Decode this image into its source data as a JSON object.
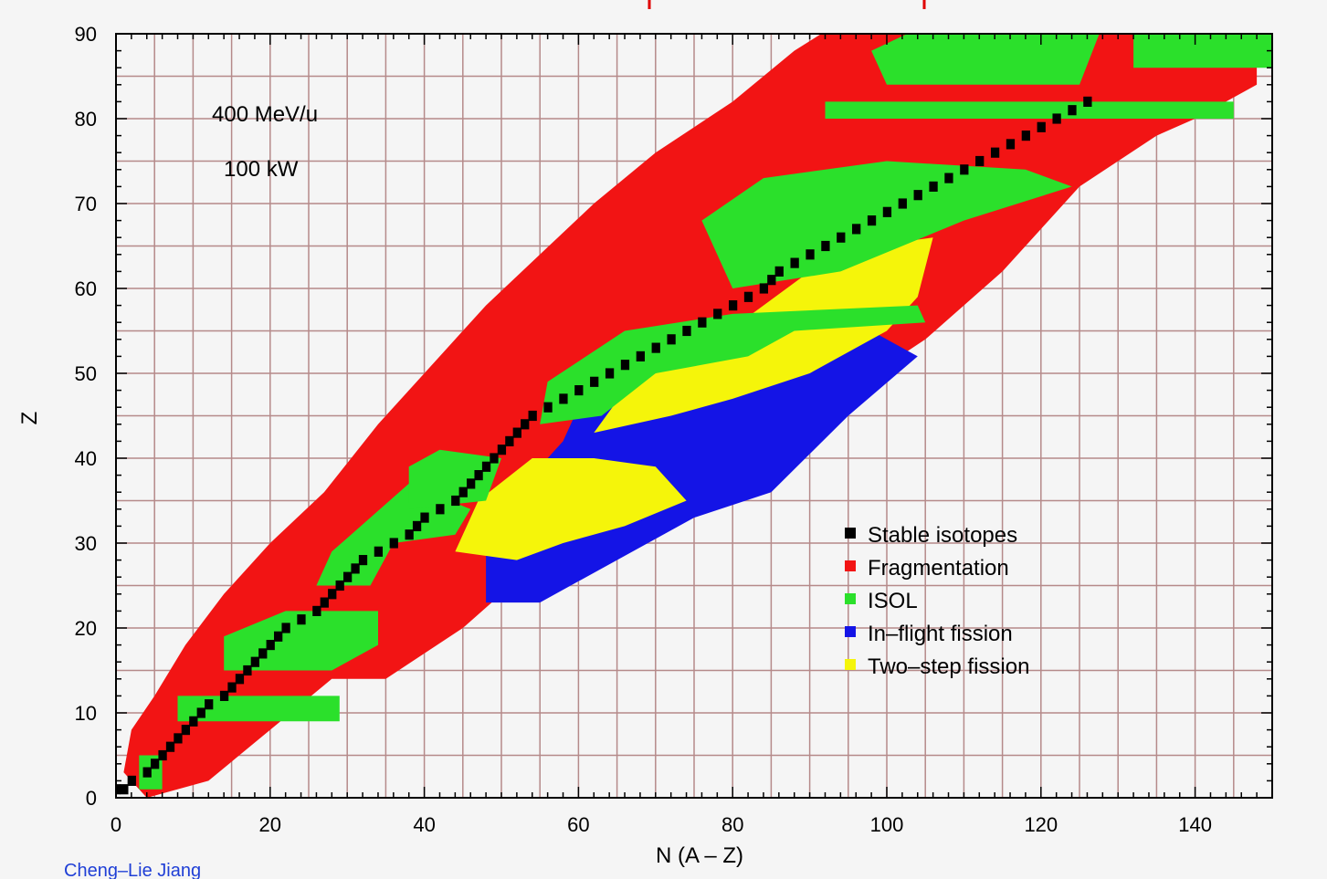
{
  "chart_data": {
    "type": "heatmap",
    "title": "",
    "xlabel": "N  (A – Z)",
    "ylabel": "Z",
    "xlim": [
      0,
      150
    ],
    "ylim": [
      0,
      90
    ],
    "x_ticks": [
      0,
      20,
      40,
      60,
      80,
      100,
      120,
      140
    ],
    "y_ticks": [
      0,
      10,
      20,
      30,
      40,
      50,
      60,
      70,
      80,
      90
    ],
    "grid": true,
    "grid_step_x": 5,
    "grid_step_y": 5,
    "annotations": [
      "400 MeV/u",
      "100 kW"
    ],
    "credit": "Cheng–Lie Jiang",
    "legend_position": "bottom-right",
    "series": [
      {
        "name": "Stable isotopes",
        "color": "#000000",
        "points": [
          [
            0,
            1
          ],
          [
            1,
            1
          ],
          [
            2,
            2
          ],
          [
            4,
            3
          ],
          [
            5,
            4
          ],
          [
            6,
            5
          ],
          [
            7,
            6
          ],
          [
            8,
            7
          ],
          [
            9,
            8
          ],
          [
            10,
            9
          ],
          [
            11,
            10
          ],
          [
            12,
            11
          ],
          [
            14,
            12
          ],
          [
            15,
            13
          ],
          [
            16,
            14
          ],
          [
            17,
            15
          ],
          [
            18,
            16
          ],
          [
            19,
            17
          ],
          [
            20,
            18
          ],
          [
            21,
            19
          ],
          [
            22,
            20
          ],
          [
            24,
            21
          ],
          [
            26,
            22
          ],
          [
            27,
            23
          ],
          [
            28,
            24
          ],
          [
            29,
            25
          ],
          [
            30,
            26
          ],
          [
            31,
            27
          ],
          [
            32,
            28
          ],
          [
            34,
            29
          ],
          [
            36,
            30
          ],
          [
            38,
            31
          ],
          [
            39,
            32
          ],
          [
            40,
            33
          ],
          [
            42,
            34
          ],
          [
            44,
            35
          ],
          [
            45,
            36
          ],
          [
            46,
            37
          ],
          [
            47,
            38
          ],
          [
            48,
            39
          ],
          [
            49,
            40
          ],
          [
            50,
            41
          ],
          [
            51,
            42
          ],
          [
            52,
            43
          ],
          [
            53,
            44
          ],
          [
            54,
            45
          ],
          [
            56,
            46
          ],
          [
            58,
            47
          ],
          [
            60,
            48
          ],
          [
            62,
            49
          ],
          [
            64,
            50
          ],
          [
            66,
            51
          ],
          [
            68,
            52
          ],
          [
            70,
            53
          ],
          [
            72,
            54
          ],
          [
            74,
            55
          ],
          [
            76,
            56
          ],
          [
            78,
            57
          ],
          [
            80,
            58
          ],
          [
            82,
            59
          ],
          [
            84,
            60
          ],
          [
            85,
            61
          ],
          [
            86,
            62
          ],
          [
            88,
            63
          ],
          [
            90,
            64
          ],
          [
            92,
            65
          ],
          [
            94,
            66
          ],
          [
            96,
            67
          ],
          [
            98,
            68
          ],
          [
            100,
            69
          ],
          [
            102,
            70
          ],
          [
            104,
            71
          ],
          [
            106,
            72
          ],
          [
            108,
            73
          ],
          [
            110,
            74
          ],
          [
            112,
            75
          ],
          [
            114,
            76
          ],
          [
            116,
            77
          ],
          [
            118,
            78
          ],
          [
            120,
            79
          ],
          [
            122,
            80
          ],
          [
            124,
            81
          ],
          [
            126,
            82
          ]
        ]
      },
      {
        "name": "Fragmentation",
        "color": "#f21414",
        "region": [
          [
            1,
            3
          ],
          [
            4,
            0
          ],
          [
            12,
            2
          ],
          [
            20,
            8
          ],
          [
            28,
            14
          ],
          [
            35,
            14
          ],
          [
            45,
            20
          ],
          [
            50,
            24
          ],
          [
            60,
            30
          ],
          [
            70,
            36
          ],
          [
            85,
            42
          ],
          [
            95,
            48
          ],
          [
            105,
            54
          ],
          [
            115,
            62
          ],
          [
            125,
            72
          ],
          [
            135,
            78
          ],
          [
            140,
            80
          ],
          [
            148,
            84
          ],
          [
            148,
            92
          ],
          [
            95,
            92
          ],
          [
            88,
            88
          ],
          [
            80,
            82
          ],
          [
            70,
            76
          ],
          [
            62,
            70
          ],
          [
            55,
            64
          ],
          [
            48,
            58
          ],
          [
            40,
            50
          ],
          [
            34,
            44
          ],
          [
            27,
            36
          ],
          [
            20,
            30
          ],
          [
            14,
            24
          ],
          [
            9,
            18
          ],
          [
            5,
            12
          ],
          [
            2,
            8
          ]
        ]
      },
      {
        "name": "ISOL",
        "color": "#2be02b",
        "bands": [
          [
            [
              3,
              1
            ],
            [
              6,
              1
            ],
            [
              6,
              5
            ],
            [
              3,
              5
            ]
          ],
          [
            [
              8,
              9
            ],
            [
              29,
              9
            ],
            [
              29,
              12
            ],
            [
              8,
              12
            ]
          ],
          [
            [
              14,
              15
            ],
            [
              28,
              15
            ],
            [
              34,
              18
            ],
            [
              34,
              22
            ],
            [
              22,
              22
            ],
            [
              14,
              19
            ]
          ],
          [
            [
              26,
              25
            ],
            [
              33,
              25
            ],
            [
              36,
              30
            ],
            [
              44,
              31
            ],
            [
              46,
              34
            ],
            [
              38,
              37
            ],
            [
              33,
              33
            ],
            [
              28,
              29
            ]
          ],
          [
            [
              38,
              34
            ],
            [
              48,
              35
            ],
            [
              50,
              40
            ],
            [
              42,
              41
            ],
            [
              38,
              39
            ]
          ],
          [
            [
              55,
              44
            ],
            [
              63,
              45
            ],
            [
              70,
              50
            ],
            [
              82,
              52
            ],
            [
              88,
              55
            ],
            [
              105,
              56
            ],
            [
              104,
              58
            ],
            [
              80,
              57
            ],
            [
              66,
              55
            ],
            [
              56,
              49
            ]
          ],
          [
            [
              80,
              60
            ],
            [
              94,
              62
            ],
            [
              110,
              68
            ],
            [
              124,
              72
            ],
            [
              118,
              74
            ],
            [
              100,
              75
            ],
            [
              84,
              73
            ],
            [
              76,
              68
            ]
          ],
          [
            [
              92,
              80
            ],
            [
              145,
              80
            ],
            [
              145,
              82
            ],
            [
              92,
              82
            ]
          ],
          [
            [
              100,
              84
            ],
            [
              125,
              84
            ],
            [
              128,
              91
            ],
            [
              105,
              91
            ],
            [
              98,
              88
            ]
          ],
          [
            [
              132,
              86
            ],
            [
              150,
              86
            ],
            [
              150,
              93
            ],
            [
              132,
              93
            ]
          ]
        ]
      },
      {
        "name": "In–flight fission",
        "color": "#1414e6",
        "region": [
          [
            48,
            23
          ],
          [
            55,
            23
          ],
          [
            65,
            28
          ],
          [
            75,
            33
          ],
          [
            85,
            36
          ],
          [
            95,
            45
          ],
          [
            104,
            52
          ],
          [
            98,
            55
          ],
          [
            92,
            53
          ],
          [
            84,
            51
          ],
          [
            74,
            49
          ],
          [
            66,
            48
          ],
          [
            60,
            46
          ],
          [
            58,
            42
          ],
          [
            54,
            38
          ],
          [
            50,
            34
          ],
          [
            48,
            30
          ]
        ]
      },
      {
        "name": "Two–step fission",
        "color": "#f5f50a",
        "regions": [
          [
            [
              44,
              29
            ],
            [
              52,
              28
            ],
            [
              58,
              30
            ],
            [
              66,
              32
            ],
            [
              74,
              35
            ],
            [
              70,
              39
            ],
            [
              62,
              40
            ],
            [
              54,
              40
            ],
            [
              47,
              35
            ]
          ],
          [
            [
              62,
              43
            ],
            [
              72,
              45
            ],
            [
              80,
              47
            ],
            [
              90,
              50
            ],
            [
              100,
              55
            ],
            [
              104,
              59
            ],
            [
              106,
              66
            ],
            [
              98,
              65
            ],
            [
              90,
              62
            ],
            [
              84,
              58
            ],
            [
              78,
              54
            ],
            [
              72,
              51
            ],
            [
              66,
              48
            ]
          ]
        ]
      }
    ]
  }
}
